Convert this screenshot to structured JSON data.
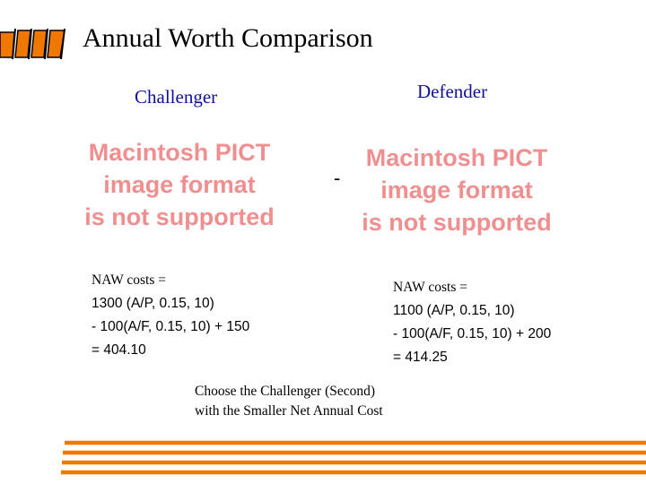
{
  "slide": {
    "title": "Annual Worth Comparison",
    "accent_color": "#f07800",
    "heading_color": "#10109a",
    "placeholder_color": "#f08f8f"
  },
  "challenger": {
    "heading": "Challenger",
    "image_placeholder": [
      "Macintosh PICT",
      "image format",
      "is not supported"
    ],
    "calc": {
      "header": "NAW costs =",
      "lines": [
        "1300 (A/P, 0.15, 10)",
        "- 100(A/F, 0.15, 10) + 150",
        "= 404.10"
      ]
    }
  },
  "separator": "-",
  "defender": {
    "heading": "Defender",
    "image_placeholder": [
      "Macintosh PICT",
      "image format",
      "is not supported"
    ],
    "calc": {
      "header": "NAW costs =",
      "lines": [
        "1100 (A/P, 0.15, 10)",
        "- 100(A/F, 0.15, 10) + 200",
        "= 414.25"
      ]
    }
  },
  "conclusion": [
    "Choose the Challenger (Second)",
    "with the Smaller Net Annual Cost"
  ]
}
